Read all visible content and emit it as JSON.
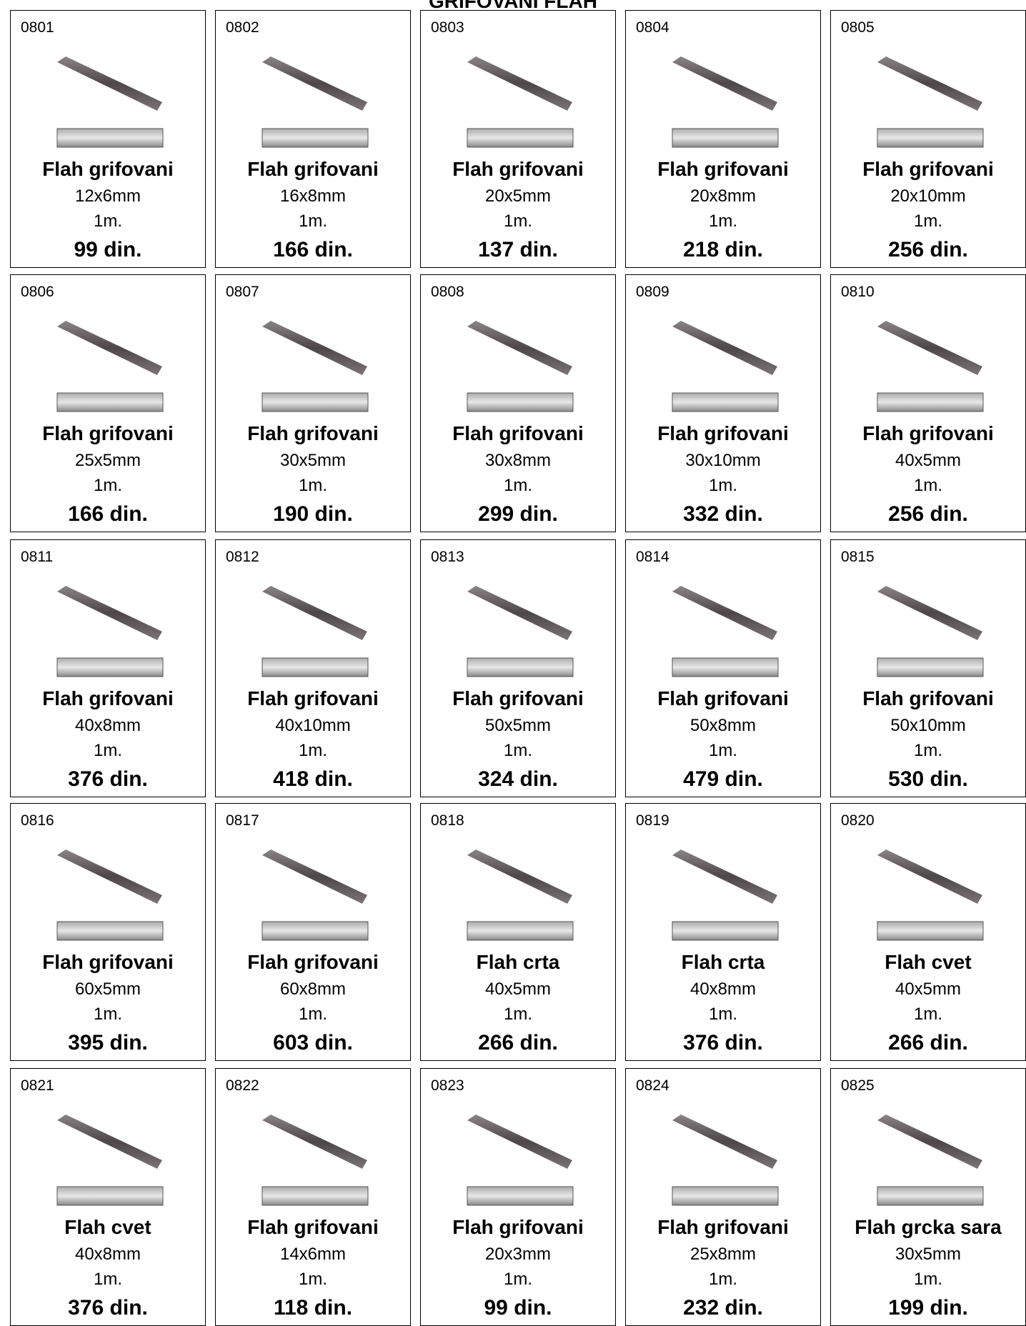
{
  "header": {
    "title": "GRIFOVANI FLAH"
  },
  "items": [
    {
      "code": "0801",
      "name": "Flah grifovani",
      "size": "12x6mm",
      "length": "1m.",
      "price": "99 din."
    },
    {
      "code": "0802",
      "name": "Flah grifovani",
      "size": "16x8mm",
      "length": "1m.",
      "price": "166 din."
    },
    {
      "code": "0803",
      "name": "Flah grifovani",
      "size": "20x5mm",
      "length": "1m.",
      "price": "137 din."
    },
    {
      "code": "0804",
      "name": "Flah grifovani",
      "size": "20x8mm",
      "length": "1m.",
      "price": "218 din."
    },
    {
      "code": "0805",
      "name": "Flah grifovani",
      "size": "20x10mm",
      "length": "1m.",
      "price": "256 din."
    },
    {
      "code": "0806",
      "name": "Flah grifovani",
      "size": "25x5mm",
      "length": "1m.",
      "price": "166 din."
    },
    {
      "code": "0807",
      "name": "Flah grifovani",
      "size": "30x5mm",
      "length": "1m.",
      "price": "190 din."
    },
    {
      "code": "0808",
      "name": "Flah grifovani",
      "size": "30x8mm",
      "length": "1m.",
      "price": "299 din."
    },
    {
      "code": "0809",
      "name": "Flah grifovani",
      "size": "30x10mm",
      "length": "1m.",
      "price": "332 din."
    },
    {
      "code": "0810",
      "name": "Flah grifovani",
      "size": "40x5mm",
      "length": "1m.",
      "price": "256 din."
    },
    {
      "code": "0811",
      "name": "Flah grifovani",
      "size": "40x8mm",
      "length": "1m.",
      "price": "376 din."
    },
    {
      "code": "0812",
      "name": "Flah grifovani",
      "size": "40x10mm",
      "length": "1m.",
      "price": "418 din."
    },
    {
      "code": "0813",
      "name": "Flah grifovani",
      "size": "50x5mm",
      "length": "1m.",
      "price": "324 din."
    },
    {
      "code": "0814",
      "name": "Flah grifovani",
      "size": "50x8mm",
      "length": "1m.",
      "price": "479 din."
    },
    {
      "code": "0815",
      "name": "Flah grifovani",
      "size": "50x10mm",
      "length": "1m.",
      "price": "530 din."
    },
    {
      "code": "0816",
      "name": "Flah grifovani",
      "size": "60x5mm",
      "length": "1m.",
      "price": "395 din."
    },
    {
      "code": "0817",
      "name": "Flah grifovani",
      "size": "60x8mm",
      "length": "1m.",
      "price": "603 din."
    },
    {
      "code": "0818",
      "name": "Flah crta",
      "size": "40x5mm",
      "length": "1m.",
      "price": "266 din."
    },
    {
      "code": "0819",
      "name": "Flah crta",
      "size": "40x8mm",
      "length": "1m.",
      "price": "376 din."
    },
    {
      "code": "0820",
      "name": "Flah cvet",
      "size": "40x5mm",
      "length": "1m.",
      "price": "266 din."
    },
    {
      "code": "0821",
      "name": "Flah cvet",
      "size": "40x8mm",
      "length": "1m.",
      "price": "376 din."
    },
    {
      "code": "0822",
      "name": "Flah grifovani",
      "size": "14x6mm",
      "length": "1m.",
      "price": "118 din."
    },
    {
      "code": "0823",
      "name": "Flah grifovani",
      "size": "20x3mm",
      "length": "1m.",
      "price": "99 din."
    },
    {
      "code": "0824",
      "name": "Flah grifovani",
      "size": "25x8mm",
      "length": "1m.",
      "price": "232 din."
    },
    {
      "code": "0825",
      "name": "Flah grcka sara",
      "size": "30x5mm",
      "length": "1m.",
      "price": "199 din."
    }
  ]
}
